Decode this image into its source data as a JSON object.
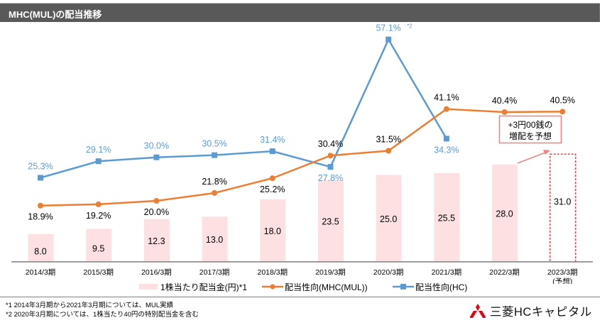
{
  "header": {
    "title": "MHC(MUL)の配当推移"
  },
  "chart_data": {
    "type": "bar+line",
    "title": "MHC(MUL)の配当推移",
    "categories": [
      "2014/3期",
      "2015/3期",
      "2016/3期",
      "2017/3期",
      "2018/3期",
      "2019/3期",
      "2020/3期",
      "2021/3期",
      "2022/3期",
      "2023/3期"
    ],
    "category_sublabels": [
      "",
      "",
      "",
      "",
      "",
      "",
      "",
      "",
      "",
      "(予想)"
    ],
    "series": [
      {
        "name": "1株当たり配当金(円)*1",
        "kind": "bar",
        "color": "#fde0e2",
        "values": [
          8.0,
          9.5,
          12.3,
          13.0,
          18.0,
          23.5,
          25.0,
          25.5,
          28.0,
          31.0
        ],
        "labels": [
          "8.0",
          "9.5",
          "12.3",
          "13.0",
          "18.0",
          "23.5",
          "25.0",
          "25.5",
          "28.0",
          "31.0"
        ],
        "forecast_index": 9,
        "forecast_color": "#e0282e"
      },
      {
        "name": "配当性向(MHC(MUL))",
        "kind": "line",
        "marker": "circle",
        "color": "#ed7d31",
        "values": [
          18.9,
          19.2,
          20.0,
          21.8,
          25.2,
          30.4,
          31.5,
          41.1,
          40.4,
          40.5
        ],
        "labels": [
          "18.9%",
          "19.2%",
          "20.0%",
          "21.8%",
          "25.2%",
          "30.4%",
          "31.5%",
          "41.1%",
          "40.4%",
          "40.5%"
        ]
      },
      {
        "name": "配当性向(HC)",
        "kind": "line",
        "marker": "square",
        "color": "#5b9bd5",
        "values": [
          25.3,
          29.1,
          30.0,
          30.5,
          31.4,
          27.8,
          57.1,
          34.3,
          null,
          null
        ],
        "labels": [
          "25.3%",
          "29.1%",
          "30.0%",
          "30.5%",
          "31.4%",
          "27.8%",
          "57.1%",
          "34.3%",
          "",
          ""
        ],
        "label_suffix_index": 6,
        "label_suffix": "*2"
      }
    ],
    "bar_ylim": [
      0,
      45
    ],
    "line_ylim": [
      0,
      60
    ],
    "grid": false,
    "legend_position": "bottom",
    "annotation": {
      "text_line1": "+3円00銭の",
      "text_line2": "増配を予想",
      "color": "#f08080"
    }
  },
  "legend": {
    "bar_label": "1株当たり配当金(円)*1",
    "mul_label": "配当性向(MHC(MUL))",
    "hc_label": "配当性向(HC)"
  },
  "footnotes": [
    "*1  2014年3月期から2021年3月期については、MUL実績",
    "*2  2020年3月期については、1株当たり40円の特別配当金を含む"
  ],
  "logo": {
    "text": "三菱HCキャピタル",
    "mark_color": "#e60012"
  }
}
